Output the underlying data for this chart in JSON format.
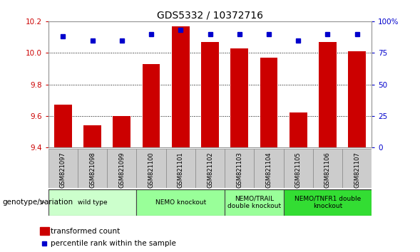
{
  "title": "GDS5332 / 10372716",
  "samples": [
    "GSM821097",
    "GSM821098",
    "GSM821099",
    "GSM821100",
    "GSM821101",
    "GSM821102",
    "GSM821103",
    "GSM821104",
    "GSM821105",
    "GSM821106",
    "GSM821107"
  ],
  "bar_values": [
    9.67,
    9.54,
    9.6,
    9.93,
    10.17,
    10.07,
    10.03,
    9.97,
    9.62,
    10.07,
    10.01
  ],
  "percentile_values": [
    88,
    85,
    85,
    90,
    93,
    90,
    90,
    90,
    85,
    90,
    90
  ],
  "ylim_left": [
    9.4,
    10.2
  ],
  "ylim_right": [
    0,
    100
  ],
  "yticks_left": [
    9.4,
    9.6,
    9.8,
    10.0,
    10.2
  ],
  "yticks_right": [
    0,
    25,
    50,
    75,
    100
  ],
  "ytick_labels_right": [
    "0",
    "25",
    "50",
    "75",
    "100%"
  ],
  "bar_color": "#cc0000",
  "dot_color": "#0000cc",
  "groups": [
    {
      "label": "wild type",
      "start": 0,
      "end": 2,
      "color": "#ccffcc"
    },
    {
      "label": "NEMO knockout",
      "start": 3,
      "end": 5,
      "color": "#99ff99"
    },
    {
      "label": "NEMO/TRAIL\ndouble knockout",
      "start": 6,
      "end": 7,
      "color": "#99ff99"
    },
    {
      "label": "NEMO/TNFR1 double\nknockout",
      "start": 8,
      "end": 10,
      "color": "#33dd33"
    }
  ],
  "legend_bar_label": "transformed count",
  "legend_dot_label": "percentile rank within the sample",
  "genotype_label": "genotype/variation",
  "background_color": "#ffffff",
  "plot_bg_color": "#ffffff",
  "tick_area_color": "#cccccc"
}
